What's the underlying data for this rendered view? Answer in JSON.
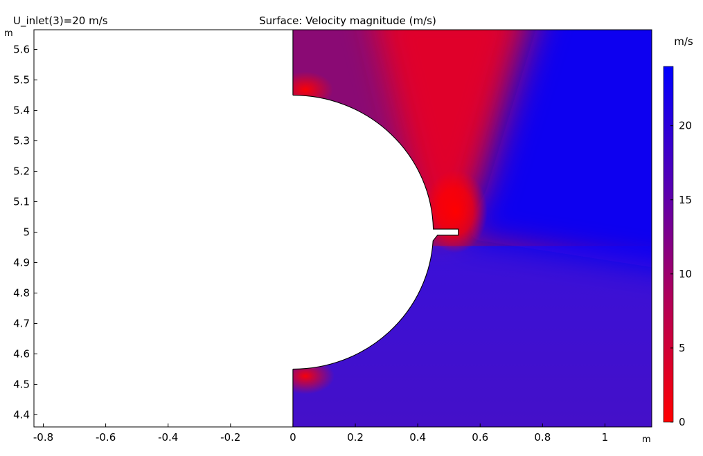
{
  "chart_data": {
    "type": "heatmap",
    "title": "Surface: Velocity magnitude (m/s)",
    "subtitle": "U_inlet(3)=20 m/s",
    "xunit": "m",
    "yunit": "m",
    "xlim": [
      -0.83,
      1.15
    ],
    "ylim": [
      4.36,
      5.665
    ],
    "xticks": [
      -0.8,
      -0.6,
      -0.4,
      -0.2,
      0,
      0.2,
      0.4,
      0.6,
      0.8,
      1
    ],
    "xtick_labels": [
      "-0.8",
      "-0.6",
      "-0.4",
      "-0.2",
      "0",
      "0.2",
      "0.4",
      "0.6",
      "0.8",
      "1"
    ],
    "yticks": [
      4.4,
      4.5,
      4.6,
      4.7,
      4.8,
      4.9,
      5.0,
      5.1,
      5.2,
      5.3,
      5.4,
      5.5,
      5.6
    ],
    "ytick_labels": [
      "4.4",
      "4.5",
      "4.6",
      "4.7",
      "4.8",
      "4.9",
      "5",
      "5.1",
      "5.2",
      "5.3",
      "5.4",
      "5.5",
      "5.6"
    ],
    "domain": {
      "x_min": 0,
      "x_max": 1.15,
      "solid_center": [
        0,
        5.0
      ],
      "solid_radius": 0.45,
      "slot": {
        "x_range": [
          0.45,
          0.53
        ],
        "y_range": [
          4.99,
          5.01
        ]
      }
    },
    "colorbar": {
      "unit": "m/s",
      "range": [
        0,
        24
      ],
      "ticks": [
        0,
        5,
        10,
        15,
        20
      ],
      "tick_labels": [
        "0",
        "5",
        "10",
        "15",
        "20"
      ],
      "colormap": [
        "#ff0000",
        "#0000ff"
      ]
    }
  }
}
